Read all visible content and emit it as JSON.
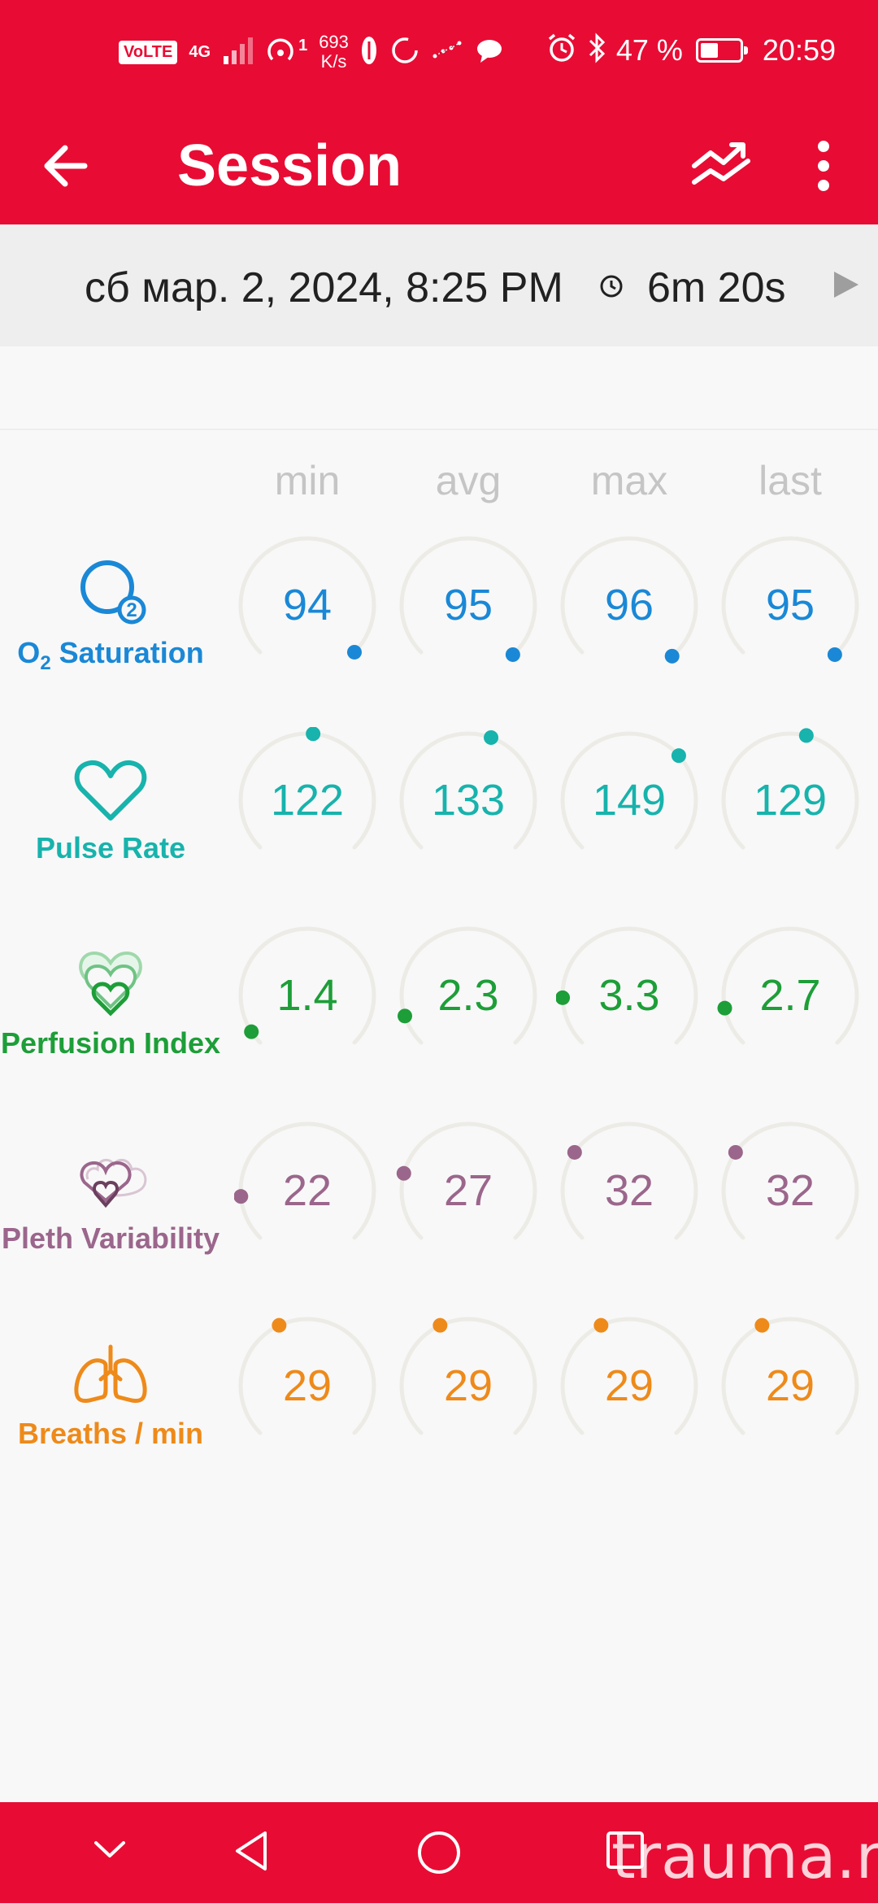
{
  "status_bar": {
    "volte": "VoLTE",
    "network": "4G",
    "hotspot_count": "1",
    "speed_value": "693",
    "speed_unit": "K/s",
    "battery_percent": "47 %",
    "time": "20:59",
    "battery_level": 0.47
  },
  "app_bar": {
    "title": "Session",
    "icons": [
      "back-arrow-icon",
      "trend-chart-icon",
      "more-vert-icon"
    ]
  },
  "session": {
    "date": "сб мар. 2, 2024, 8:25 PM",
    "duration": "6m 20s"
  },
  "columns": [
    "min",
    "avg",
    "max",
    "last"
  ],
  "metrics": [
    {
      "key": "o2",
      "label_main": "O",
      "label_sub": "2",
      "label_rest": " Saturation",
      "color": "#1a88d6",
      "icon": "o2-icon",
      "values": [
        "94",
        "95",
        "96",
        "95"
      ],
      "dot_angles": [
        135,
        138,
        140,
        138
      ]
    },
    {
      "key": "pulse",
      "label": "Pulse Rate",
      "color": "#17b3ac",
      "icon": "heart-icon",
      "values": [
        "122",
        "133",
        "149",
        "129"
      ],
      "dot_angles": [
        5,
        20,
        48,
        14
      ]
    },
    {
      "key": "perfusion",
      "label": "Perfusion Index",
      "color": "#1d9e38",
      "icon": "perfusion-heart-icon",
      "values": [
        "1.4",
        "2.3",
        "3.3",
        "2.7"
      ],
      "dot_angles": [
        -123,
        -108,
        -92,
        -101
      ]
    },
    {
      "key": "pleth",
      "label": "Pleth Variability",
      "color": "#9b668c",
      "icon": "pleth-hearts-icon",
      "values": [
        "22",
        "27",
        "32",
        "32"
      ],
      "dot_angles": [
        -95,
        -75,
        -55,
        -55
      ]
    },
    {
      "key": "breaths",
      "label": "Breaths / min",
      "color": "#ee8a1a",
      "icon": "lungs-icon",
      "values": [
        "29",
        "29",
        "29",
        "29"
      ],
      "dot_angles": [
        -25,
        -25,
        -25,
        -25
      ]
    }
  ],
  "nav_bar": {
    "icons": [
      "chevron-down-icon",
      "back-triangle-icon",
      "home-circle-icon",
      "recents-square-icon"
    ],
    "watermark": "trauma.ru"
  }
}
